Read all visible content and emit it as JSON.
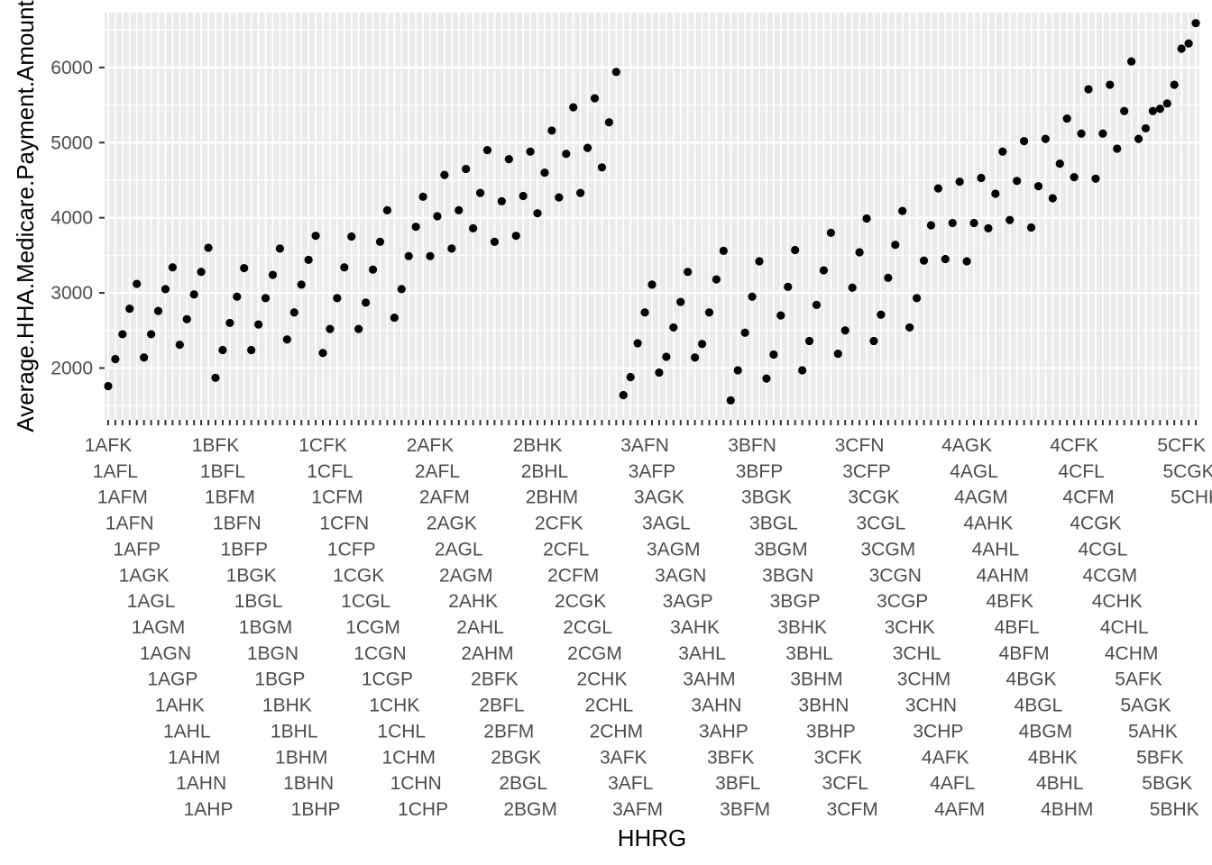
{
  "chart_data": {
    "type": "scatter",
    "title": "",
    "xlabel": "HHRG",
    "ylabel": "Average.HHA.Medicare.Payment.Amount",
    "x": [
      "1AFK",
      "1AFL",
      "1AFM",
      "1AFN",
      "1AFP",
      "1AGK",
      "1AGL",
      "1AGM",
      "1AGN",
      "1AGP",
      "1AHK",
      "1AHL",
      "1AHM",
      "1AHN",
      "1AHP",
      "1BFK",
      "1BFL",
      "1BFM",
      "1BFN",
      "1BFP",
      "1BGK",
      "1BGL",
      "1BGM",
      "1BGN",
      "1BGP",
      "1BHK",
      "1BHL",
      "1BHM",
      "1BHN",
      "1BHP",
      "1CFK",
      "1CFL",
      "1CFM",
      "1CFN",
      "1CFP",
      "1CGK",
      "1CGL",
      "1CGM",
      "1CGN",
      "1CGP",
      "1CHK",
      "1CHL",
      "1CHM",
      "1CHN",
      "1CHP",
      "2AFK",
      "2AFL",
      "2AFM",
      "2AGK",
      "2AGL",
      "2AGM",
      "2AHK",
      "2AHL",
      "2AHM",
      "2BFK",
      "2BFL",
      "2BFM",
      "2BGK",
      "2BGL",
      "2BGM",
      "2BHK",
      "2BHL",
      "2BHM",
      "2CFK",
      "2CFL",
      "2CFM",
      "2CGK",
      "2CGL",
      "2CGM",
      "2CHK",
      "2CHL",
      "2CHM",
      "3AFK",
      "3AFL",
      "3AFM",
      "3AFN",
      "3AFP",
      "3AGK",
      "3AGL",
      "3AGM",
      "3AGN",
      "3AGP",
      "3AHK",
      "3AHL",
      "3AHM",
      "3AHN",
      "3AHP",
      "3BFK",
      "3BFL",
      "3BFM",
      "3BFN",
      "3BFP",
      "3BGK",
      "3BGL",
      "3BGM",
      "3BGN",
      "3BGP",
      "3BHK",
      "3BHL",
      "3BHM",
      "3BHN",
      "3BHP",
      "3CFK",
      "3CFL",
      "3CFM",
      "3CFN",
      "3CFP",
      "3CGK",
      "3CGL",
      "3CGM",
      "3CGN",
      "3CGP",
      "3CHK",
      "3CHL",
      "3CHM",
      "3CHN",
      "3CHP",
      "4AFK",
      "4AFL",
      "4AFM",
      "4AGK",
      "4AGL",
      "4AGM",
      "4AHK",
      "4AHL",
      "4AHM",
      "4BFK",
      "4BFL",
      "4BFM",
      "4BGK",
      "4BGL",
      "4BGM",
      "4BHK",
      "4BHL",
      "4BHM",
      "4CFK",
      "4CFL",
      "4CFM",
      "4CGK",
      "4CGL",
      "4CGM",
      "4CHK",
      "4CHL",
      "4CHM",
      "5AFK",
      "5AGK",
      "5AHK",
      "5BFK",
      "5BGK",
      "5BHK",
      "5CFK",
      "5CGK",
      "5CHK"
    ],
    "y": [
      1760,
      2120,
      2450,
      2790,
      3120,
      2140,
      2450,
      2760,
      3050,
      3340,
      2310,
      2650,
      2980,
      3280,
      3600,
      1870,
      2240,
      2600,
      2950,
      3330,
      2240,
      2580,
      2930,
      3240,
      3590,
      2380,
      2740,
      3110,
      3440,
      3760,
      2200,
      2520,
      2930,
      3340,
      3750,
      2520,
      2870,
      3310,
      3680,
      4100,
      2670,
      3050,
      3490,
      3880,
      4280,
      3490,
      4020,
      4570,
      3590,
      4100,
      4650,
      3860,
      4330,
      4900,
      3680,
      4220,
      4780,
      3760,
      4290,
      4880,
      4060,
      4600,
      5160,
      4270,
      4850,
      5470,
      4330,
      4930,
      5590,
      4670,
      5270,
      5940,
      1640,
      1880,
      2330,
      2740,
      3110,
      1940,
      2150,
      2540,
      2880,
      3280,
      2140,
      2320,
      2740,
      3180,
      3560,
      1570,
      1970,
      2470,
      2950,
      3420,
      1860,
      2180,
      2700,
      3080,
      3570,
      1970,
      2360,
      2840,
      3300,
      3800,
      2190,
      2500,
      3070,
      3540,
      3990,
      2360,
      2710,
      3200,
      3640,
      4090,
      2540,
      2930,
      3430,
      3900,
      4390,
      3450,
      3930,
      4480,
      3420,
      3930,
      4530,
      3860,
      4320,
      4880,
      3970,
      4490,
      5020,
      3870,
      4420,
      5050,
      4260,
      4720,
      5320,
      4540,
      5120,
      5710,
      4520,
      5120,
      5770,
      4920,
      5420,
      6080,
      5050,
      5190,
      5420,
      5450,
      5520,
      5770,
      6250,
      6320,
      6590
    ],
    "ylim": [
      1310,
      6730
    ],
    "yticks": [
      2000,
      3000,
      4000,
      5000,
      6000
    ],
    "grid": true,
    "legend": "none"
  }
}
